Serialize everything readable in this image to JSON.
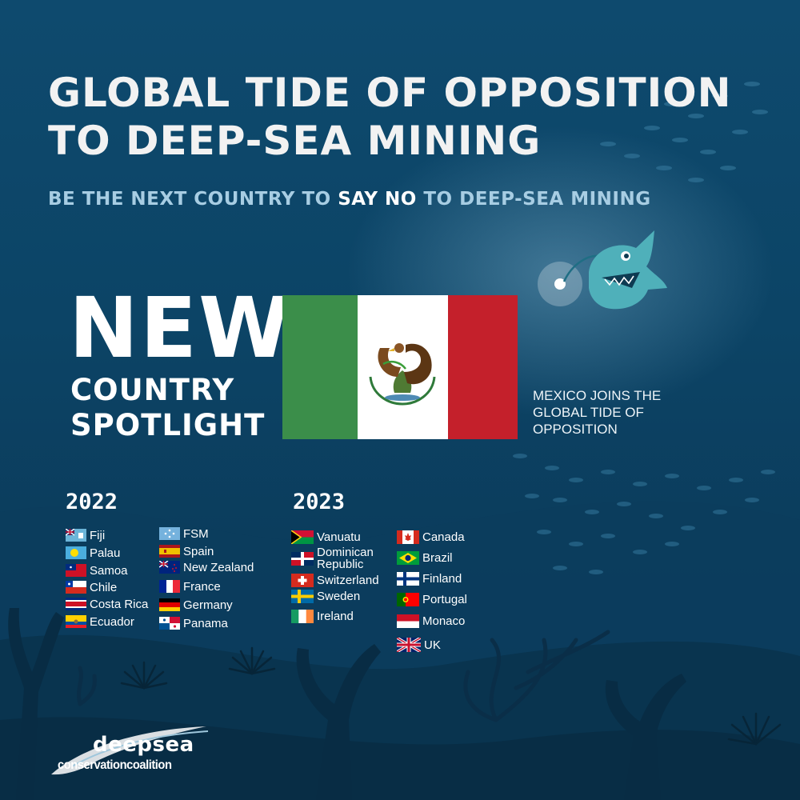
{
  "header": {
    "title_line1": "GLOBAL TIDE OF OPPOSITION",
    "title_line2": "TO DEEP-SEA MINING",
    "subtitle_before": "BE THE NEXT COUNTRY TO ",
    "subtitle_highlight": "SAY NO",
    "subtitle_after": " TO DEEP-SEA MINING"
  },
  "spotlight": {
    "new": "NEW",
    "line1": "COUNTRY",
    "line2": "SPOTLIGHT",
    "country_flag": "mexico-flag",
    "caption_line1": "MEXICO JOINS THE",
    "caption_line2": "GLOBAL TIDE OF",
    "caption_line3": "OPPOSITION"
  },
  "year_2022": {
    "label": "2022",
    "col1": [
      "Fiji",
      "Palau",
      "Samoa",
      "Chile",
      "Costa Rica",
      "Ecuador"
    ],
    "col2": [
      "FSM",
      "Spain",
      "New Zealand",
      "France",
      "Germany",
      "Panama"
    ]
  },
  "year_2023": {
    "label": "2023",
    "col1": [
      "Vanuatu",
      "Dominican Republic",
      "Switzerland",
      "Sweden",
      "Ireland"
    ],
    "col2": [
      "Canada",
      "Brazil",
      "Finland",
      "Portugal",
      "Monaco",
      "UK"
    ]
  },
  "logo": {
    "top": "deepsea",
    "bottom": "conservationcoalition"
  },
  "colors": {
    "background": "#0c4466",
    "subtitle": "#a7cde3",
    "mexico_green": "#3b8e4a",
    "mexico_red": "#c4202b"
  }
}
